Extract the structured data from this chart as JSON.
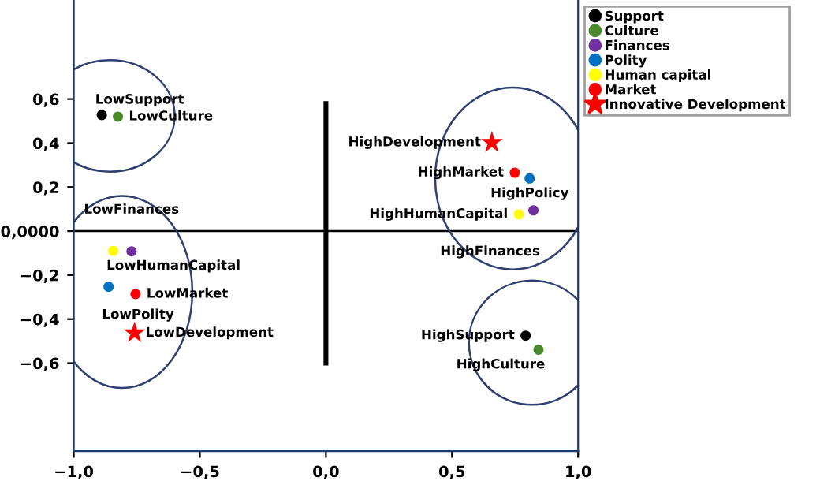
{
  "chart_data": {
    "type": "scatter",
    "xlim": [
      -1.0,
      1.0
    ],
    "ylim": [
      -1.0,
      1.05
    ],
    "xticks": [
      {
        "value": -1.0,
        "label": "−1,0"
      },
      {
        "value": -0.5,
        "label": "−0,5"
      },
      {
        "value": 0.0,
        "label": "0,0"
      },
      {
        "value": 0.5,
        "label": "0,5"
      },
      {
        "value": 1.0,
        "label": "1,0"
      }
    ],
    "yticks": [
      {
        "value": -0.6,
        "label": "−0,6"
      },
      {
        "value": -0.4,
        "label": "−0,4"
      },
      {
        "value": -0.2,
        "label": "−0,2"
      },
      {
        "value": 0.0,
        "label": "0,0000"
      },
      {
        "value": 0.2,
        "label": "0,2"
      },
      {
        "value": 0.4,
        "label": "0,4"
      },
      {
        "value": 0.6,
        "label": "0,6"
      }
    ],
    "grid": false,
    "legend": "top right",
    "marker": "circle",
    "ref_lines": [
      {
        "axis": "y",
        "value": 0,
        "color": "#000000"
      }
    ],
    "series": [
      {
        "name": "Support",
        "color": "#000000",
        "x": [
          -0.889,
          0.792
        ],
        "values": [
          0.527,
          -0.475
        ]
      },
      {
        "name": "Culture",
        "color": "#4a8a2a",
        "x": [
          -0.825,
          0.843
        ],
        "values": [
          0.52,
          -0.539
        ]
      },
      {
        "name": "Finances",
        "color": "#7030a0",
        "x": [
          -0.771,
          0.823
        ],
        "values": [
          -0.092,
          0.094
        ]
      },
      {
        "name": "Polity",
        "color": "#0070c0",
        "x": [
          -0.862,
          0.808
        ],
        "values": [
          -0.253,
          0.239
        ]
      },
      {
        "name": "Human capital",
        "color": "#ffff00",
        "x": [
          -0.844,
          0.765
        ],
        "values": [
          -0.09,
          0.076
        ]
      },
      {
        "name": "Market",
        "color": "#ff0000",
        "x": [
          -0.755,
          0.749
        ],
        "values": [
          -0.286,
          0.265
        ]
      },
      {
        "name": "Innovative Development",
        "color": "#ff0000",
        "marker": "star",
        "x": [
          -0.759,
          0.658
        ],
        "values": [
          -0.463,
          0.402
        ]
      },
      {
        "type": "line",
        "color": "#000000",
        "marker": "none",
        "x": [
          0,
          0
        ],
        "values": [
          -0.6,
          0.58
        ]
      }
    ],
    "annotations": [
      {
        "text": "LowCulture",
        "x": -0.825,
        "y": 0.52
      },
      {
        "text": "LowSupport",
        "x": -0.889,
        "y": 0.527
      },
      {
        "text": "LowHumanCapital",
        "x": -0.844,
        "y": -0.09
      },
      {
        "text": "LowFinances",
        "x": -0.771,
        "y": -0.092
      },
      {
        "text": "LowPolity",
        "x": -0.862,
        "y": -0.253
      },
      {
        "text": "LowMarket",
        "x": -0.755,
        "y": -0.286
      },
      {
        "text": "LowDevelopment",
        "x": -0.759,
        "y": -0.463
      },
      {
        "text": "HighDevelopment",
        "x": 0.658,
        "y": 0.402
      },
      {
        "text": "HighMarket",
        "x": 0.749,
        "y": 0.265
      },
      {
        "text": "HighPolicy",
        "x": 0.808,
        "y": 0.239
      },
      {
        "text": "HighFinances",
        "x": 0.823,
        "y": 0.094
      },
      {
        "text": "HighHumanCapital",
        "x": 0.765,
        "y": 0.076
      },
      {
        "text": "HighSupport",
        "x": 0.792,
        "y": -0.475
      },
      {
        "text": "HighCulture",
        "x": 0.843,
        "y": -0.539
      }
    ]
  }
}
